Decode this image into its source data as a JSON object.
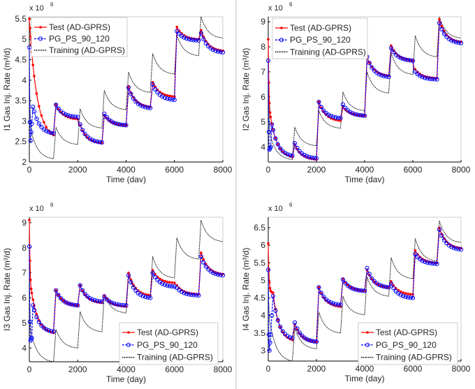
{
  "chart_data": [
    {
      "type": "line",
      "ylabel": "I1 Gas Inj. Rate (m³/d)",
      "xlabel": "Time (dav)",
      "multiplier": "x 10",
      "exponent": "6",
      "xlim": [
        0,
        8000
      ],
      "ylim": [
        2,
        5.55
      ],
      "xticks": [
        "0",
        "2000",
        "4000",
        "6000",
        "8000"
      ],
      "yticks": [
        "2",
        "2.5",
        "3",
        "3.5",
        "4",
        "4.5",
        "5",
        "5.5"
      ],
      "legend_position": "top-left",
      "series": [
        {
          "name": "Test (AD-GPRS)",
          "color": "#ff0000",
          "marker": "dot",
          "x": [
            0,
            1000,
            1100,
            2000,
            2100,
            3000,
            3100,
            4000,
            4100,
            5000,
            5100,
            6000,
            6100,
            7000,
            7100,
            8000
          ],
          "y": [
            5.5,
            2.66,
            3.4,
            3.05,
            2.9,
            2.46,
            3.15,
            2.9,
            3.85,
            3.35,
            3.95,
            3.6,
            5.3,
            5.0,
            5.22,
            4.72
          ]
        },
        {
          "name": "PG_PS_90_120",
          "color": "#0000ff",
          "marker": "circle",
          "x": [
            0,
            50,
            150,
            1000,
            1100,
            2000,
            2100,
            3000,
            3100,
            4000,
            4100,
            5000,
            5100,
            6000,
            6100,
            7000,
            7100,
            8000
          ],
          "y": [
            4.8,
            2.52,
            3.35,
            2.7,
            3.4,
            3.1,
            2.92,
            2.48,
            3.18,
            2.9,
            3.82,
            3.32,
            3.9,
            3.52,
            5.2,
            4.97,
            5.15,
            4.68
          ]
        },
        {
          "name": "Training (AD-GPRS)",
          "color": "#000000",
          "marker": "none",
          "x": [
            0,
            100,
            1000,
            1100,
            2000,
            2100,
            3000,
            3100,
            4000,
            4100,
            5000,
            5100,
            6000,
            6100,
            7000,
            7100,
            8000
          ],
          "y": [
            4.5,
            2.7,
            2.08,
            2.85,
            2.43,
            3.3,
            2.83,
            3.75,
            3.28,
            4.2,
            3.7,
            4.65,
            4.15,
            5.1,
            4.6,
            5.55,
            5.03
          ]
        }
      ]
    },
    {
      "type": "line",
      "ylabel": "I2 Gas Inj. Rate (m³/d)",
      "xlabel": "Time (dav)",
      "multiplier": "x 10",
      "exponent": "6",
      "xlim": [
        0,
        8000
      ],
      "ylim": [
        3.4,
        9.2
      ],
      "xticks": [
        "0",
        "2000",
        "4000",
        "6000",
        "8000"
      ],
      "yticks": [
        "4",
        "5",
        "6",
        "7",
        "8",
        "9"
      ],
      "legend_position": "top-left",
      "series": [
        {
          "name": "Test (AD-GPRS)",
          "color": "#ff0000",
          "marker": "dot",
          "x": [
            0,
            100,
            1000,
            1100,
            2000,
            2100,
            3000,
            3100,
            4000,
            4100,
            5000,
            5100,
            6000,
            6100,
            7000,
            7100,
            8000
          ],
          "y": [
            8.3,
            5.2,
            3.6,
            4.1,
            3.5,
            5.8,
            5.05,
            5.6,
            5.25,
            7.6,
            6.85,
            8.05,
            7.45,
            7.1,
            6.75,
            9.1,
            8.2
          ]
        },
        {
          "name": "PG_PS_90_120",
          "color": "#0000ff",
          "marker": "circle",
          "x": [
            0,
            50,
            100,
            150,
            1000,
            1100,
            2000,
            2100,
            3000,
            3100,
            4000,
            4100,
            5000,
            5100,
            6000,
            6100,
            7000,
            7100,
            8000
          ],
          "y": [
            7.45,
            3.9,
            4.0,
            4.9,
            3.65,
            4.15,
            3.55,
            5.8,
            5.15,
            5.7,
            5.25,
            7.6,
            6.8,
            7.95,
            7.45,
            7.0,
            6.7,
            8.95,
            8.15
          ]
        },
        {
          "name": "Training (AD-GPRS)",
          "color": "#000000",
          "marker": "none",
          "x": [
            0,
            100,
            1000,
            1100,
            2000,
            2100,
            3000,
            3100,
            4000,
            4100,
            5000,
            5100,
            6000,
            6100,
            7000,
            7100,
            8000
          ],
          "y": [
            7.2,
            4.4,
            3.5,
            4.8,
            4.05,
            5.45,
            4.75,
            6.2,
            5.45,
            7.0,
            6.15,
            7.75,
            6.9,
            8.45,
            7.6,
            9.2,
            8.35
          ]
        }
      ]
    },
    {
      "type": "line",
      "ylabel": "I3 Gas Inj. Rate (m³/d)",
      "xlabel": "Time (day)",
      "multiplier": "x 10",
      "exponent": "6",
      "xlim": [
        0,
        8000
      ],
      "ylim": [
        3.45,
        9.22
      ],
      "xticks": [
        "0",
        "2000",
        "4000",
        "6000",
        "8000"
      ],
      "yticks": [
        "4",
        "5",
        "6",
        "7",
        "8",
        "9"
      ],
      "legend_position": "bottom-right",
      "series": [
        {
          "name": "Test (AD-GPRS)",
          "color": "#ff0000",
          "marker": "dot",
          "x": [
            0,
            100,
            1000,
            1100,
            2000,
            2100,
            3000,
            3100,
            4000,
            4100,
            5000,
            5100,
            6000,
            6100,
            7000,
            7100,
            8000
          ],
          "y": [
            9.1,
            6.2,
            4.6,
            6.3,
            5.7,
            6.5,
            5.8,
            6.1,
            5.65,
            7.0,
            6.1,
            7.1,
            6.6,
            6.5,
            6.15,
            7.8,
            6.95
          ]
        },
        {
          "name": "PG_PS_90_120",
          "color": "#0000ff",
          "marker": "circle",
          "x": [
            0,
            50,
            100,
            150,
            1000,
            1100,
            2000,
            2100,
            3000,
            3100,
            4000,
            4100,
            5000,
            5100,
            6000,
            6100,
            7000,
            7100,
            8000
          ],
          "y": [
            8.05,
            4.3,
            4.4,
            5.7,
            4.65,
            6.3,
            5.7,
            6.5,
            5.85,
            6.05,
            5.7,
            6.9,
            6.0,
            7.0,
            6.45,
            6.4,
            6.1,
            7.65,
            6.9
          ]
        },
        {
          "name": "Training (AD-GPRS)",
          "color": "#000000",
          "marker": "none",
          "x": [
            0,
            100,
            1000,
            1100,
            2000,
            2100,
            3000,
            3100,
            4000,
            4100,
            5000,
            5100,
            6000,
            6100,
            7000,
            7100,
            8000
          ],
          "y": [
            6.7,
            4.5,
            3.45,
            4.75,
            4.0,
            5.45,
            4.65,
            6.15,
            5.4,
            6.9,
            6.1,
            7.65,
            6.8,
            8.4,
            7.55,
            9.1,
            8.25
          ]
        }
      ]
    },
    {
      "type": "line",
      "ylabel": "I4 Gas Inj. Rate (m³/d)",
      "xlabel": "Time (day)",
      "multiplier": "x 10",
      "exponent": "6",
      "xlim": [
        0,
        8000
      ],
      "ylim": [
        2.7,
        6.8
      ],
      "xticks": [
        "0",
        "2000",
        "4000",
        "6000",
        "8000"
      ],
      "yticks": [
        "3",
        "3.5",
        "4",
        "4.5",
        "5",
        "5.5",
        "6",
        "6.5"
      ],
      "legend_position": "bottom-right",
      "series": [
        {
          "name": "Test (AD-GPRS)",
          "color": "#ff0000",
          "marker": "dot",
          "x": [
            0,
            100,
            200,
            1000,
            1100,
            2000,
            2100,
            3000,
            3100,
            4000,
            4100,
            5000,
            5100,
            6000,
            6100,
            7000,
            7100,
            8000
          ],
          "y": [
            6.05,
            4.7,
            4.65,
            3.3,
            3.75,
            3.25,
            4.8,
            4.25,
            5.05,
            4.7,
            5.3,
            4.8,
            4.97,
            4.6,
            5.85,
            5.5,
            6.5,
            5.92
          ]
        },
        {
          "name": "PG_PS_90_120",
          "color": "#0000ff",
          "marker": "circle",
          "x": [
            0,
            50,
            100,
            200,
            1000,
            1100,
            2000,
            2100,
            3000,
            3100,
            4000,
            4100,
            5000,
            5100,
            6000,
            6100,
            7000,
            7100,
            8000
          ],
          "y": [
            5.3,
            3.0,
            3.45,
            4.55,
            3.35,
            3.8,
            3.25,
            4.8,
            4.3,
            5.02,
            4.7,
            5.35,
            4.8,
            4.9,
            4.5,
            5.75,
            5.47,
            6.45,
            5.88
          ]
        },
        {
          "name": "Training (AD-GPRS)",
          "color": "#000000",
          "marker": "none",
          "x": [
            0,
            100,
            1000,
            1100,
            2000,
            2100,
            3000,
            3100,
            4000,
            4100,
            5000,
            5100,
            6000,
            6100,
            7000,
            7100,
            8000
          ],
          "y": [
            5.0,
            3.7,
            2.7,
            3.65,
            3.05,
            4.1,
            3.5,
            4.55,
            4.02,
            5.1,
            4.55,
            5.65,
            5.05,
            6.2,
            5.55,
            6.7,
            6.08
          ]
        }
      ]
    }
  ]
}
